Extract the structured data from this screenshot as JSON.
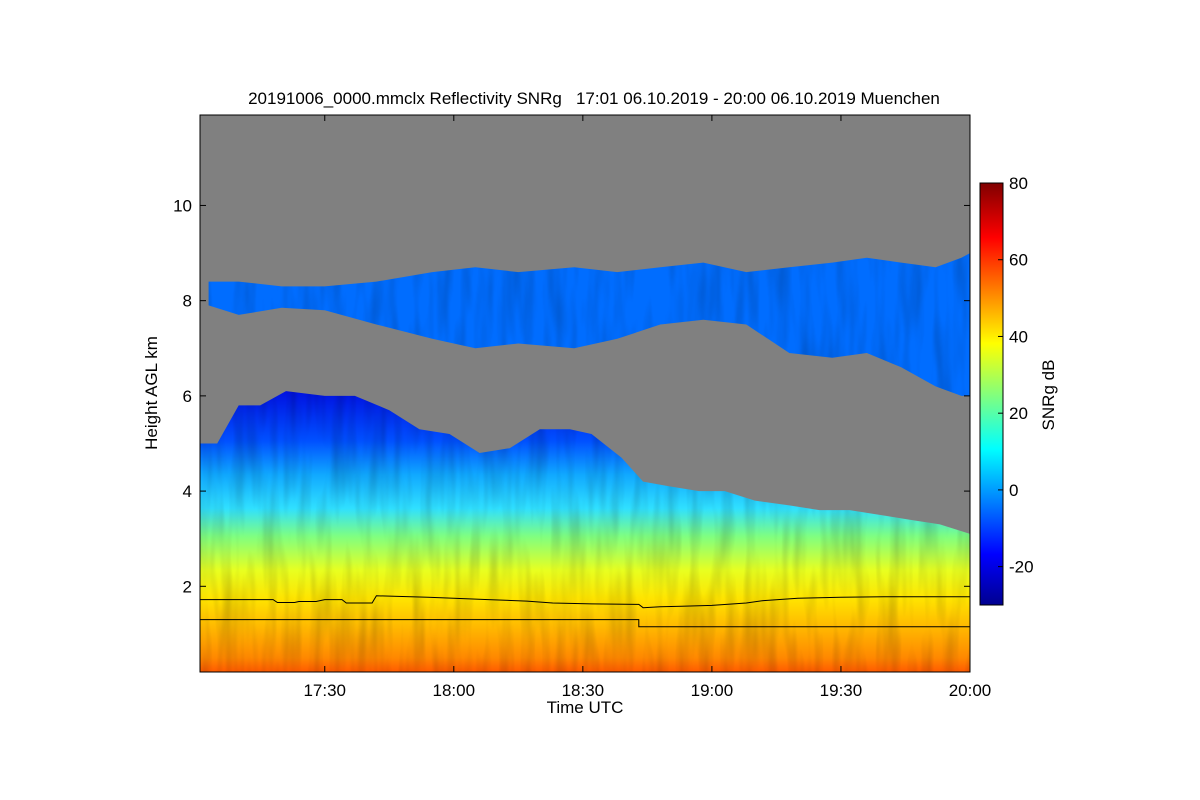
{
  "chart_data": {
    "type": "heatmap",
    "title": "20191006_0000.mmclx Reflectivity SNRg   17:01 06.10.2019 - 20:00 06.10.2019 Muenchen",
    "xlabel": "Time UTC",
    "ylabel": "Height AGL km",
    "xlim_minutes_utc": [
      1021,
      1200
    ],
    "ylim_km": [
      0.2,
      11.9
    ],
    "x_ticks": [
      {
        "label": "17:30",
        "minute": 1050
      },
      {
        "label": "18:00",
        "minute": 1080
      },
      {
        "label": "18:30",
        "minute": 1110
      },
      {
        "label": "19:00",
        "minute": 1140
      },
      {
        "label": "19:30",
        "minute": 1170
      },
      {
        "label": "20:00",
        "minute": 1200
      }
    ],
    "y_ticks": [
      {
        "label": "2",
        "value": 2
      },
      {
        "label": "4",
        "value": 4
      },
      {
        "label": "6",
        "value": 6
      },
      {
        "label": "8",
        "value": 8
      },
      {
        "label": "10",
        "value": 10
      }
    ],
    "background_color": "#808080",
    "colorbar": {
      "label": "SNRg dB",
      "range": [
        -30,
        80
      ],
      "ticks": [
        {
          "label": "80",
          "value": 80
        },
        {
          "label": "60",
          "value": 60
        },
        {
          "label": "40",
          "value": 40
        },
        {
          "label": "20",
          "value": 20
        },
        {
          "label": "0",
          "value": 0
        },
        {
          "label": "-20",
          "value": -20
        }
      ],
      "colormap": [
        "#00008f",
        "#0000ff",
        "#00ffff",
        "#ffff00",
        "#ff0000",
        "#800000"
      ]
    },
    "upper_cloud_layer": {
      "base_km": [
        [
          1023,
          7.9
        ],
        [
          1030,
          7.7
        ],
        [
          1040,
          7.85
        ],
        [
          1050,
          7.8
        ],
        [
          1062,
          7.5
        ],
        [
          1075,
          7.2
        ],
        [
          1085,
          7.0
        ],
        [
          1095,
          7.1
        ],
        [
          1108,
          7.0
        ],
        [
          1118,
          7.2
        ],
        [
          1128,
          7.5
        ],
        [
          1138,
          7.6
        ],
        [
          1148,
          7.5
        ],
        [
          1158,
          6.9
        ],
        [
          1168,
          6.8
        ],
        [
          1176,
          6.9
        ],
        [
          1184,
          6.6
        ],
        [
          1192,
          6.2
        ],
        [
          1198,
          6.0
        ],
        [
          1200,
          6.0
        ]
      ],
      "top_km": [
        [
          1023,
          8.4
        ],
        [
          1030,
          8.4
        ],
        [
          1040,
          8.3
        ],
        [
          1050,
          8.3
        ],
        [
          1062,
          8.4
        ],
        [
          1075,
          8.6
        ],
        [
          1085,
          8.7
        ],
        [
          1095,
          8.6
        ],
        [
          1108,
          8.7
        ],
        [
          1118,
          8.6
        ],
        [
          1128,
          8.7
        ],
        [
          1138,
          8.8
        ],
        [
          1148,
          8.6
        ],
        [
          1158,
          8.7
        ],
        [
          1168,
          8.8
        ],
        [
          1176,
          8.9
        ],
        [
          1184,
          8.8
        ],
        [
          1192,
          8.7
        ],
        [
          1198,
          8.9
        ],
        [
          1200,
          9.0
        ]
      ],
      "snr_db": -5
    },
    "lower_cloud_top_km": [
      [
        1021,
        5.0
      ],
      [
        1025,
        5.0
      ],
      [
        1030,
        5.8
      ],
      [
        1035,
        5.8
      ],
      [
        1041,
        6.1
      ],
      [
        1050,
        6.0
      ],
      [
        1057,
        6.0
      ],
      [
        1065,
        5.7
      ],
      [
        1072,
        5.3
      ],
      [
        1079,
        5.2
      ],
      [
        1086,
        4.8
      ],
      [
        1093,
        4.9
      ],
      [
        1100,
        5.3
      ],
      [
        1107,
        5.3
      ],
      [
        1112,
        5.2
      ],
      [
        1119,
        4.7
      ],
      [
        1124,
        4.2
      ],
      [
        1130,
        4.1
      ],
      [
        1137,
        4.0
      ],
      [
        1143,
        4.0
      ],
      [
        1150,
        3.8
      ],
      [
        1158,
        3.7
      ],
      [
        1165,
        3.6
      ],
      [
        1172,
        3.6
      ],
      [
        1179,
        3.5
      ],
      [
        1186,
        3.4
      ],
      [
        1193,
        3.3
      ],
      [
        1200,
        3.1
      ]
    ],
    "snr_profile_db": [
      [
        0.2,
        55
      ],
      [
        0.8,
        50
      ],
      [
        1.6,
        44
      ],
      [
        2.2,
        36
      ],
      [
        2.8,
        27
      ],
      [
        3.4,
        18
      ],
      [
        4.0,
        10
      ],
      [
        4.6,
        3
      ],
      [
        5.5,
        -2
      ],
      [
        6.1,
        -8
      ]
    ],
    "cloud_base_lines_km": [
      {
        "name": "line-upper",
        "points": [
          [
            1021,
            1.72
          ],
          [
            1038,
            1.72
          ],
          [
            1039,
            1.66
          ],
          [
            1043,
            1.66
          ],
          [
            1044,
            1.68
          ],
          [
            1048,
            1.68
          ],
          [
            1050,
            1.72
          ],
          [
            1054,
            1.72
          ],
          [
            1055,
            1.65
          ],
          [
            1061,
            1.65
          ],
          [
            1062,
            1.8
          ],
          [
            1074,
            1.77
          ],
          [
            1080,
            1.75
          ],
          [
            1088,
            1.72
          ],
          [
            1097,
            1.69
          ],
          [
            1103,
            1.65
          ],
          [
            1112,
            1.63
          ],
          [
            1123,
            1.62
          ],
          [
            1124,
            1.55
          ],
          [
            1128,
            1.57
          ],
          [
            1133,
            1.58
          ],
          [
            1140,
            1.6
          ],
          [
            1148,
            1.65
          ],
          [
            1152,
            1.7
          ],
          [
            1160,
            1.75
          ],
          [
            1170,
            1.77
          ],
          [
            1180,
            1.78
          ],
          [
            1190,
            1.78
          ],
          [
            1200,
            1.78
          ]
        ]
      },
      {
        "name": "line-lower",
        "points": [
          [
            1021,
            1.3
          ],
          [
            1123,
            1.3
          ],
          [
            1123,
            1.15
          ],
          [
            1200,
            1.15
          ]
        ]
      }
    ]
  }
}
